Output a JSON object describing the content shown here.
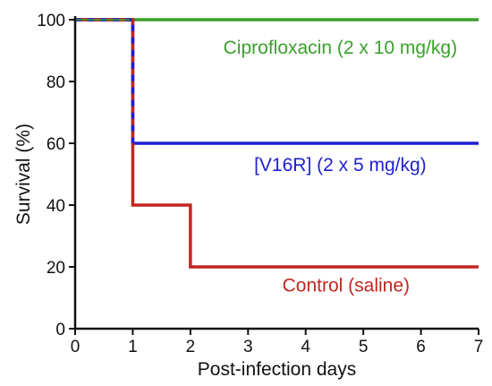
{
  "chart_data": {
    "type": "line",
    "title": "",
    "xlabel": "Post-infection days",
    "ylabel": "Survival (%)",
    "xlim": [
      0,
      7
    ],
    "ylim": [
      0,
      100
    ],
    "x_ticks": [
      0,
      1,
      2,
      3,
      4,
      5,
      6,
      7
    ],
    "y_ticks": [
      0,
      20,
      40,
      60,
      80,
      100
    ],
    "step": true,
    "grid": false,
    "series": [
      {
        "name": "Ciprofloxacin (2 x 10 mg/kg)",
        "color": "#3aa02c",
        "points": [
          [
            0,
            100
          ],
          [
            7,
            100
          ]
        ]
      },
      {
        "name": "[V16R] (2 x 5 mg/kg)",
        "color": "#1f1fd0",
        "points": [
          [
            0,
            100
          ],
          [
            1,
            100
          ],
          [
            1,
            60
          ],
          [
            7,
            60
          ]
        ]
      },
      {
        "name": "Control (saline)",
        "color": "#c0271f",
        "points": [
          [
            0,
            100
          ],
          [
            1,
            100
          ],
          [
            1,
            40
          ],
          [
            2,
            40
          ],
          [
            2,
            20
          ],
          [
            7,
            20
          ]
        ]
      }
    ]
  }
}
